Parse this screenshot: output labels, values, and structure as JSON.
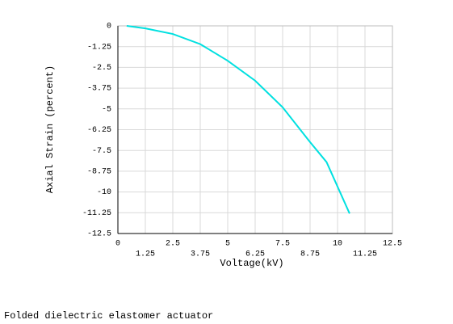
{
  "chart_data": {
    "type": "line",
    "x_label": "Voltage(kV)",
    "y_label": "Axial Strain (percent)",
    "caption": "Folded dielectric elastomer actuator",
    "x": [
      0.4,
      1.25,
      2.5,
      3.75,
      5,
      6.25,
      7.5,
      8.75,
      9.5,
      10.55
    ],
    "series": [
      {
        "color": "#00e0e0",
        "values": [
          0,
          -0.15,
          -0.49,
          -1.1,
          -2.1,
          -3.3,
          -4.9,
          -7.0,
          -8.2,
          -11.3
        ]
      }
    ],
    "xlim": [
      0,
      12.5
    ],
    "xticks": [
      0,
      1.25,
      2.5,
      3.75,
      5,
      6.25,
      7.5,
      8.75,
      10,
      11.25,
      12.5
    ],
    "ylim": [
      -12.5,
      0
    ],
    "yticks": [
      0,
      -1.25,
      -2.5,
      -3.75,
      -5,
      -6.25,
      -7.5,
      -8.75,
      -10,
      -11.25,
      -12.5
    ],
    "grid": true
  }
}
